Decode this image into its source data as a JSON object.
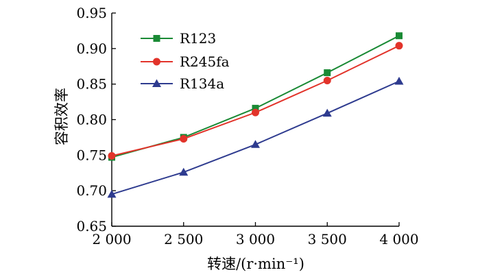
{
  "chart_data": {
    "type": "line",
    "title": "",
    "xlabel": "转速/(r·min⁻¹)",
    "ylabel": "容积效率",
    "x": [
      2000,
      2500,
      3000,
      3500,
      4000
    ],
    "x_tick_labels": [
      "2 000",
      "2 500",
      "3 000",
      "3 500",
      "4 000"
    ],
    "y_ticks": [
      0.65,
      0.7,
      0.75,
      0.8,
      0.85,
      0.9,
      0.95
    ],
    "y_tick_labels": [
      "0.65",
      "0.70",
      "0.75",
      "0.80",
      "0.85",
      "0.90",
      "0.95"
    ],
    "xlim": [
      2000,
      4000
    ],
    "ylim": [
      0.65,
      0.95
    ],
    "grid": false,
    "legend_position": "top-left",
    "series": [
      {
        "name": "R123",
        "marker": "square",
        "color": "#1a8a35",
        "values": [
          0.747,
          0.775,
          0.816,
          0.866,
          0.918
        ]
      },
      {
        "name": "R245fa",
        "marker": "circle",
        "color": "#e2332a",
        "values": [
          0.749,
          0.773,
          0.81,
          0.855,
          0.904
        ]
      },
      {
        "name": "R134a",
        "marker": "triangle",
        "color": "#2e3b8f",
        "values": [
          0.695,
          0.726,
          0.765,
          0.809,
          0.854
        ]
      }
    ]
  }
}
